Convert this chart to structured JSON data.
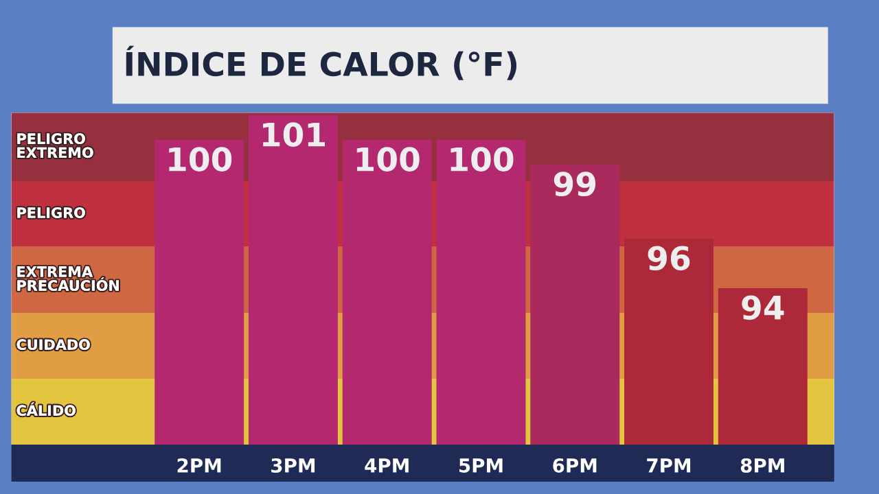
{
  "chart_data": {
    "type": "bar",
    "title": "ÍNDICE DE CALOR (°F)",
    "categories": [
      "2PM",
      "3PM",
      "4PM",
      "5PM",
      "6PM",
      "7PM",
      "8PM"
    ],
    "values": [
      100,
      101,
      100,
      100,
      99,
      96,
      94
    ],
    "colors": [
      "#b3286f",
      "#b3286f",
      "#b3286f",
      "#b3286f",
      "#ab2a5e",
      "#ad2838",
      "#ad2838"
    ],
    "data_labels": true,
    "ylim": [
      87.67,
      101.1
    ],
    "tick_labels": "x",
    "grid": false,
    "bands": [
      {
        "axis": "y",
        "from": 87.67,
        "to": 90.33,
        "label": "CÁLIDO",
        "color": "#e2c43f"
      },
      {
        "axis": "y",
        "from": 90.33,
        "to": 93,
        "label": "CUIDADO",
        "color": "#e19d44"
      },
      {
        "axis": "y",
        "from": 93,
        "to": 95.67,
        "label": "EXTREMA\nPRECAUCIÓN",
        "color": "#cf6743"
      },
      {
        "axis": "y",
        "from": 95.67,
        "to": 98.33,
        "label": "PELIGRO",
        "color": "#c0313f"
      },
      {
        "axis": "y",
        "from": 98.33,
        "to": 101.1,
        "label": "PELIGRO\nEXTREMO",
        "color": "#96303f"
      }
    ]
  }
}
